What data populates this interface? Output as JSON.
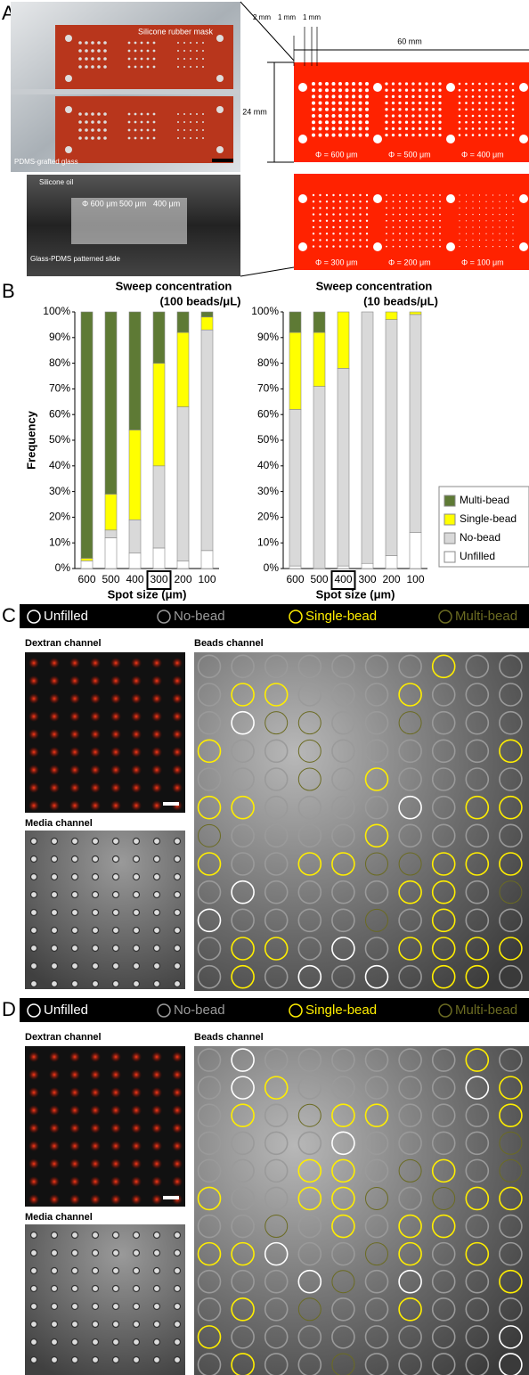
{
  "panel_a": {
    "label": "A",
    "photo_top": {
      "mask_label": "Silicone rubber mask",
      "glass_label": "PDMS-grafted glass"
    },
    "photo_bottom": {
      "oil_label": "Silicone oil",
      "size_labels": [
        "Φ 600 μm",
        "500 μm",
        "400 μm"
      ],
      "slide_label": "Glass-PDMS patterned slide"
    },
    "schematic": {
      "spacings": [
        "2 mm",
        "1 mm",
        "1 mm"
      ],
      "width": "60 mm",
      "height": "24 mm",
      "top_diameters": [
        "Φ = 600 μm",
        "Φ = 500 μm",
        "Φ = 400 μm"
      ],
      "bottom_diameters": [
        "Φ = 300 μm",
        "Φ = 200 μm",
        "Φ = 100 μm"
      ]
    }
  },
  "panel_b": {
    "label": "B"
  },
  "chart_data": [
    {
      "type": "stacked_bar",
      "title": "Sweep concentration",
      "subtitle": "(100 beads/μL)",
      "x_label": "Spot size (μm)",
      "y_label": "Frequency",
      "categories": [
        "600",
        "500",
        "400",
        "300",
        "200",
        "100"
      ],
      "highlight_category": "300",
      "ylim": [
        0,
        100
      ],
      "yticks": [
        {
          "value": 0,
          "label": "0%"
        },
        {
          "value": 10,
          "label": "10%"
        },
        {
          "value": 20,
          "label": "20%"
        },
        {
          "value": 30,
          "label": "30%"
        },
        {
          "value": 40,
          "label": "40%"
        },
        {
          "value": 50,
          "label": "50%"
        },
        {
          "value": 60,
          "label": "60%"
        },
        {
          "value": 70,
          "label": "70%"
        },
        {
          "value": 80,
          "label": "80%"
        },
        {
          "value": 90,
          "label": "90%"
        },
        {
          "value": 100,
          "label": "100%"
        }
      ],
      "series": [
        {
          "color": "#ffffff",
          "values": [
            3,
            12,
            6,
            8,
            3,
            7
          ]
        },
        {
          "color": "#d9d9d9",
          "values": [
            0,
            3,
            13,
            32,
            60,
            86
          ]
        },
        {
          "color": "#ffff00",
          "values": [
            1,
            14,
            35,
            40,
            29,
            5
          ]
        },
        {
          "color": "#5e7a35",
          "values": [
            96,
            71,
            46,
            20,
            8,
            2
          ]
        }
      ]
    },
    {
      "type": "stacked_bar",
      "title": "Sweep concentration",
      "subtitle": "(10 beads/μL)",
      "x_label": "Spot size (μm)",
      "categories": [
        "600",
        "500",
        "400",
        "300",
        "200",
        "100"
      ],
      "highlight_category": "400",
      "ylim": [
        0,
        100
      ],
      "yticks": [
        {
          "value": 0,
          "label": "0%"
        },
        {
          "value": 10,
          "label": "10%"
        },
        {
          "value": 20,
          "label": "20%"
        },
        {
          "value": 30,
          "label": "30%"
        },
        {
          "value": 40,
          "label": "40%"
        },
        {
          "value": 50,
          "label": "50%"
        },
        {
          "value": 60,
          "label": "60%"
        },
        {
          "value": 70,
          "label": "70%"
        },
        {
          "value": 80,
          "label": "80%"
        },
        {
          "value": 90,
          "label": "90%"
        },
        {
          "value": 100,
          "label": "100%"
        }
      ],
      "legend": "right",
      "series": [
        {
          "name": "Unfilled",
          "color": "#ffffff",
          "values": [
            1,
            0,
            1,
            2,
            5,
            14
          ]
        },
        {
          "name": "No-bead",
          "color": "#d9d9d9",
          "values": [
            61,
            71,
            77,
            98,
            92,
            85
          ]
        },
        {
          "name": "Single-bead",
          "color": "#ffff00",
          "values": [
            30,
            21,
            22,
            0,
            3,
            1
          ]
        },
        {
          "name": "Multi-bead",
          "color": "#5e7a35",
          "values": [
            8,
            8,
            0,
            0,
            0,
            0
          ]
        }
      ]
    }
  ],
  "panel_c": {
    "label": "C",
    "legend": [
      "Unfilled",
      "No-bead",
      "Single-bead",
      "Multi-bead"
    ],
    "channels": [
      "Dextran channel",
      "Media channel",
      "Beads channel"
    ]
  },
  "panel_d": {
    "label": "D",
    "legend": [
      "Unfilled",
      "No-bead",
      "Single-bead",
      "Multi-bead"
    ],
    "channels": [
      "Dextran channel",
      "Media channel",
      "Beads channel"
    ]
  }
}
